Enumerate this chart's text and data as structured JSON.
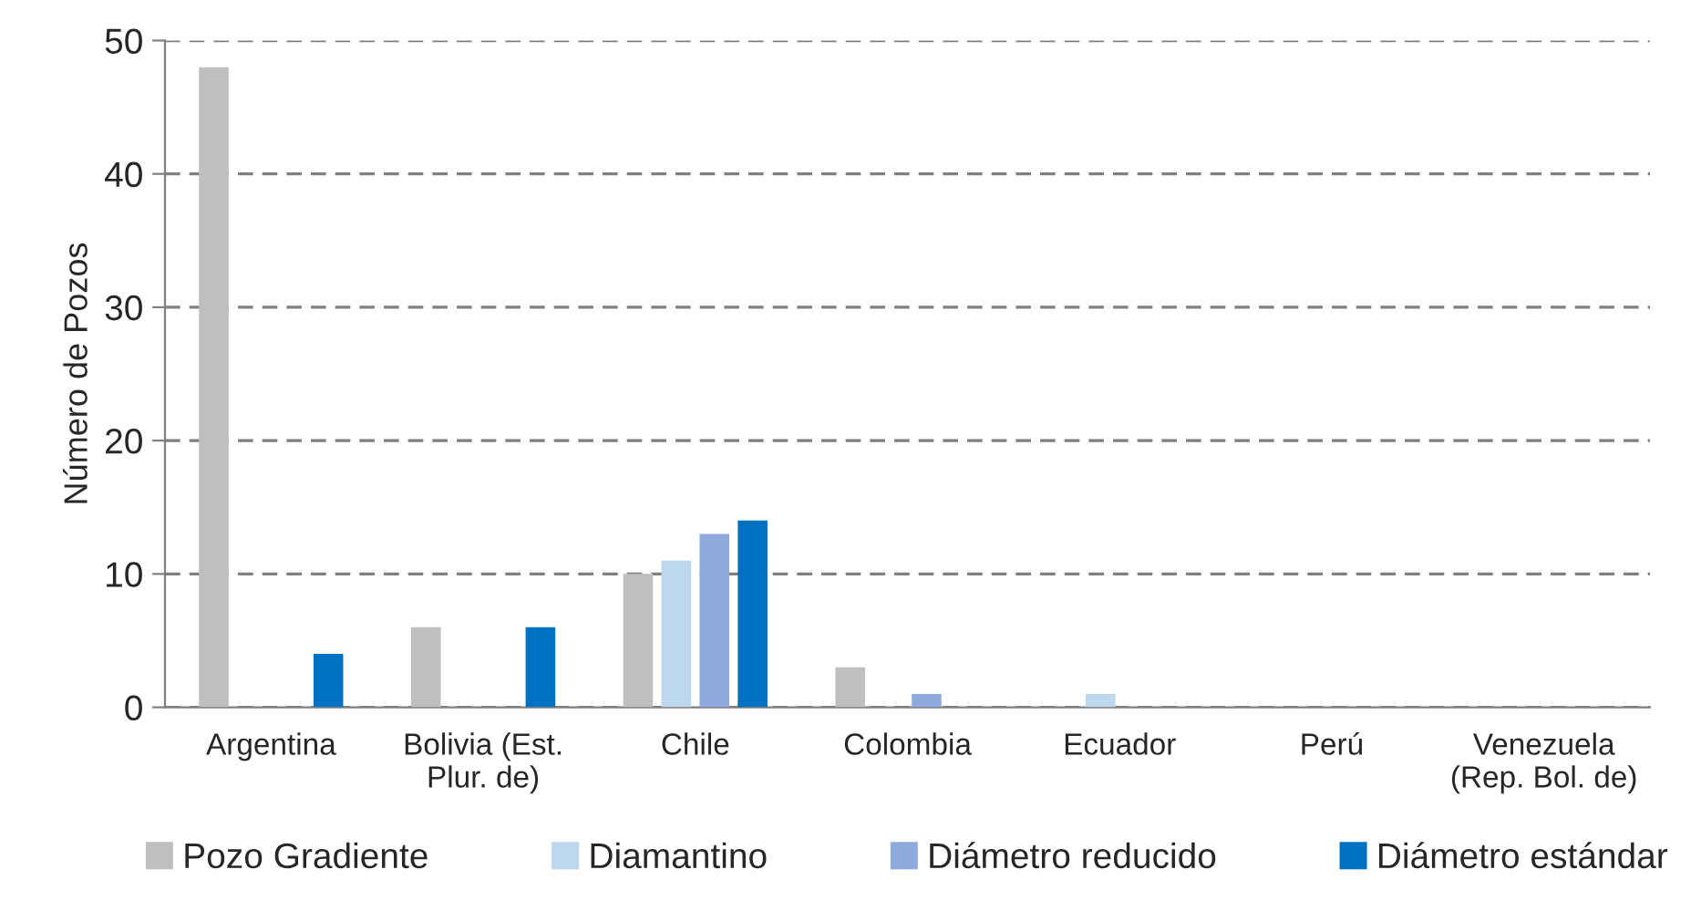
{
  "chart_data": {
    "type": "bar",
    "ylabel": "Número de Pozos",
    "categories": [
      "Argentina",
      "Bolivia (Est.\nPlur. de)",
      "Chile",
      "Colombia",
      "Ecuador",
      "Perú",
      "Venezuela\n(Rep. Bol. de)"
    ],
    "series": [
      {
        "name": "Pozo Gradiente",
        "color": "#bfbfbf",
        "values": [
          48,
          6,
          10,
          3,
          null,
          null,
          null
        ]
      },
      {
        "name": "Diamantino",
        "color": "#bdd7ee",
        "values": [
          null,
          null,
          11,
          null,
          1,
          null,
          null
        ]
      },
      {
        "name": "Diámetro reducido",
        "color": "#8faadc",
        "values": [
          null,
          null,
          13,
          1,
          null,
          null,
          null
        ]
      },
      {
        "name": "Diámetro estándar",
        "color": "#0070c0",
        "values": [
          4,
          6,
          14,
          null,
          null,
          null,
          null
        ]
      }
    ],
    "ylim": [
      0,
      50
    ],
    "yticks": [
      0,
      10,
      20,
      30,
      40,
      50
    ],
    "grid": "y",
    "legend": "bottom"
  }
}
